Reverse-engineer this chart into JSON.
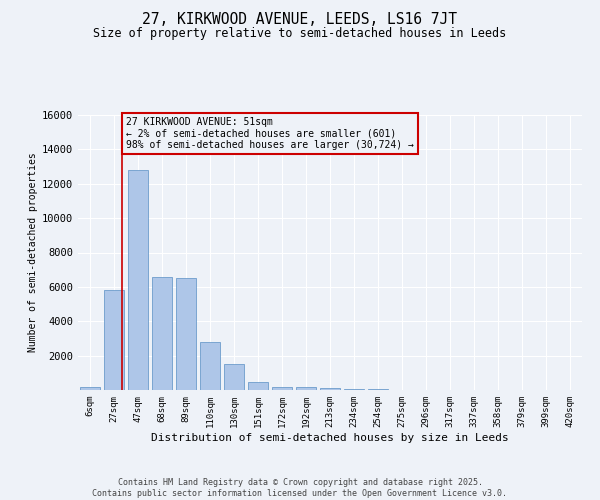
{
  "title": "27, KIRKWOOD AVENUE, LEEDS, LS16 7JT",
  "subtitle": "Size of property relative to semi-detached houses in Leeds",
  "xlabel": "Distribution of semi-detached houses by size in Leeds",
  "ylabel": "Number of semi-detached properties",
  "bin_labels": [
    "6sqm",
    "27sqm",
    "47sqm",
    "68sqm",
    "89sqm",
    "110sqm",
    "130sqm",
    "151sqm",
    "172sqm",
    "192sqm",
    "213sqm",
    "234sqm",
    "254sqm",
    "275sqm",
    "296sqm",
    "317sqm",
    "337sqm",
    "358sqm",
    "379sqm",
    "399sqm",
    "420sqm"
  ],
  "bar_heights": [
    150,
    5800,
    12800,
    6600,
    6500,
    2800,
    1500,
    450,
    200,
    150,
    100,
    50,
    30,
    0,
    0,
    0,
    0,
    0,
    0,
    0,
    0
  ],
  "bar_color": "#aec6e8",
  "bar_edge_color": "#5a8fc4",
  "vline_x": 1.35,
  "vline_color": "#cc0000",
  "annotation_text": "27 KIRKWOOD AVENUE: 51sqm\n← 2% of semi-detached houses are smaller (601)\n98% of semi-detached houses are larger (30,724) →",
  "annotation_box_color": "#cc0000",
  "ylim": [
    0,
    16000
  ],
  "yticks": [
    0,
    2000,
    4000,
    6000,
    8000,
    10000,
    12000,
    14000,
    16000
  ],
  "background_color": "#eef2f8",
  "grid_color": "#ffffff",
  "footer_line1": "Contains HM Land Registry data © Crown copyright and database right 2025.",
  "footer_line2": "Contains public sector information licensed under the Open Government Licence v3.0."
}
